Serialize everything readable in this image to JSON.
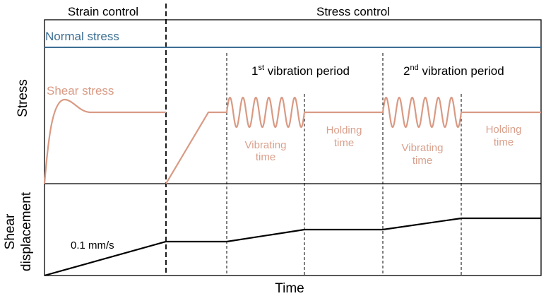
{
  "header": {
    "left_label": "Strain control",
    "right_label": "Stress control"
  },
  "axes": {
    "x_label": "Time",
    "top_y_label": "Stress",
    "bottom_y_label_line1": "Shear",
    "bottom_y_label_line2": "displacement"
  },
  "curves": {
    "normal_stress_label": "Normal stress",
    "shear_stress_label": "Shear stress"
  },
  "periods": {
    "first": {
      "ordinal_number": "1",
      "ordinal_suffix": "st",
      "text": " vibration period"
    },
    "second": {
      "ordinal_number": "2",
      "ordinal_suffix": "nd",
      "text": " vibration period"
    }
  },
  "phases": {
    "vibrating_line1": "Vibrating",
    "vibrating_line2": "time",
    "holding_line1": "Holding",
    "holding_line2": "time"
  },
  "annotations": {
    "rate": "0.1 mm/s"
  },
  "colors": {
    "normal_stress": "#3d6f94",
    "shear_stress": "#d99a84",
    "phase_text": "#d9a08c",
    "axis": "#000000"
  }
}
